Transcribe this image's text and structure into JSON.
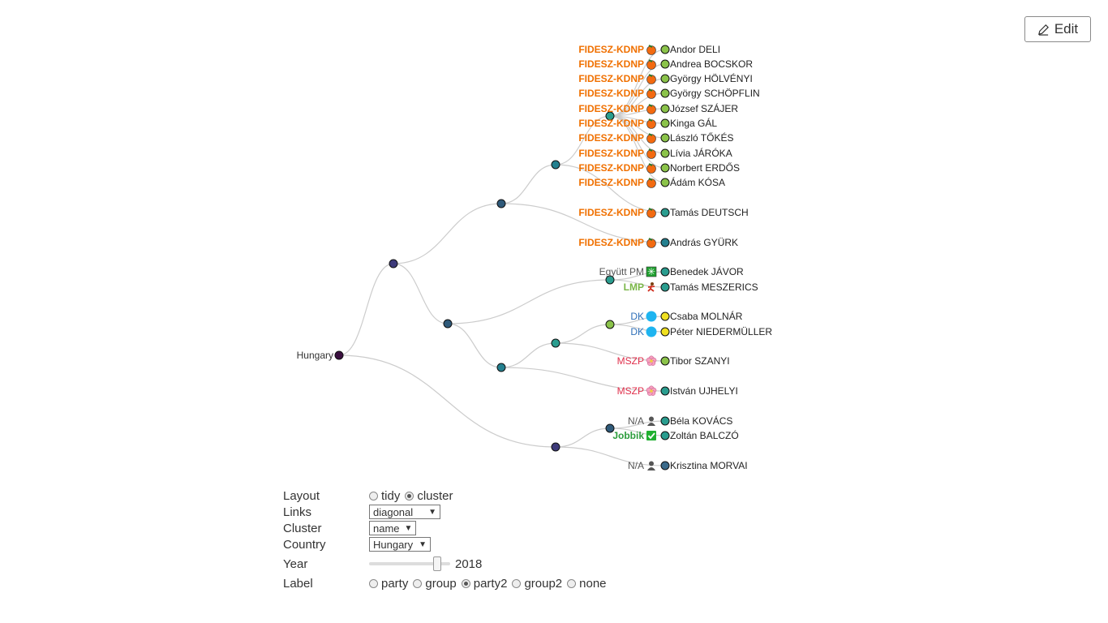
{
  "edit_button": {
    "label": "Edit"
  },
  "tree": {
    "root_label": "Hungary",
    "colors": {
      "fidesz": "#f07000",
      "jobbik": "#2c9c3c",
      "lmp": "#7ab648",
      "dk": "#2f6fb8",
      "mszp": "#e0304c",
      "na": "#555555",
      "egyutt": "#555555"
    },
    "leaves": [
      {
        "party": "FIDESZ-KDNP",
        "party_color": "#f07000",
        "party_icon": "orange-icon",
        "dot_color": "#8bc34a",
        "name": "Andor DELI"
      },
      {
        "party": "FIDESZ-KDNP",
        "party_color": "#f07000",
        "party_icon": "orange-icon",
        "dot_color": "#8bc34a",
        "name": "Andrea BOCSKOR"
      },
      {
        "party": "FIDESZ-KDNP",
        "party_color": "#f07000",
        "party_icon": "orange-icon",
        "dot_color": "#8bc34a",
        "name": "György HÖLVÉNYI"
      },
      {
        "party": "FIDESZ-KDNP",
        "party_color": "#f07000",
        "party_icon": "orange-icon",
        "dot_color": "#8bc34a",
        "name": "György SCHÖPFLIN"
      },
      {
        "party": "FIDESZ-KDNP",
        "party_color": "#f07000",
        "party_icon": "orange-icon",
        "dot_color": "#8bc34a",
        "name": "József SZÁJER"
      },
      {
        "party": "FIDESZ-KDNP",
        "party_color": "#f07000",
        "party_icon": "orange-icon",
        "dot_color": "#8bc34a",
        "name": "Kinga GÁL"
      },
      {
        "party": "FIDESZ-KDNP",
        "party_color": "#f07000",
        "party_icon": "orange-icon",
        "dot_color": "#8bc34a",
        "name": "László TŐKÉS"
      },
      {
        "party": "FIDESZ-KDNP",
        "party_color": "#f07000",
        "party_icon": "orange-icon",
        "dot_color": "#8bc34a",
        "name": "Lívia JÁRÓKA"
      },
      {
        "party": "FIDESZ-KDNP",
        "party_color": "#f07000",
        "party_icon": "orange-icon",
        "dot_color": "#8bc34a",
        "name": "Norbert ERDŐS"
      },
      {
        "party": "FIDESZ-KDNP",
        "party_color": "#f07000",
        "party_icon": "orange-icon",
        "dot_color": "#8bc34a",
        "name": "Ádám KÓSA"
      },
      {
        "party": "FIDESZ-KDNP",
        "party_color": "#f07000",
        "party_icon": "orange-icon",
        "dot_color": "#2a9d8f",
        "name": "Tamás DEUTSCH"
      },
      {
        "party": "FIDESZ-KDNP",
        "party_color": "#f07000",
        "party_icon": "orange-icon",
        "dot_color": "#24808f",
        "name": "András GYÜRK"
      },
      {
        "party": "Együtt PM",
        "party_color": "#555555",
        "party_icon": "green-square-icon",
        "dot_color": "#2a9d8f",
        "name": "Benedek JÁVOR"
      },
      {
        "party": "LMP",
        "party_color": "#7ab648",
        "party_icon": "runner-icon",
        "dot_color": "#2a9d8f",
        "name": "Tamás MESZERICS"
      },
      {
        "party": "DK",
        "party_color": "#2f6fb8",
        "party_icon": "blue-circle-icon",
        "dot_color": "#f0e020",
        "name": "Csaba MOLNÁR"
      },
      {
        "party": "DK",
        "party_color": "#2f6fb8",
        "party_icon": "blue-circle-icon",
        "dot_color": "#f0e020",
        "name": "Péter NIEDERMÜLLER"
      },
      {
        "party": "MSZP",
        "party_color": "#e0304c",
        "party_icon": "flower-icon",
        "dot_color": "#8bc34a",
        "name": "Tibor SZANYI"
      },
      {
        "party": "MSZP",
        "party_color": "#e0304c",
        "party_icon": "flower-icon",
        "dot_color": "#2a9d8f",
        "name": "István UJHELYI"
      },
      {
        "party": "N/A",
        "party_color": "#555555",
        "party_icon": "person-icon",
        "dot_color": "#2a9d8f",
        "name": "Béla KOVÁCS"
      },
      {
        "party": "Jobbik",
        "party_color": "#2c9c3c",
        "party_icon": "check-icon",
        "dot_color": "#2a9d8f",
        "name": "Zoltán BALCZÓ"
      },
      {
        "party": "N/A",
        "party_color": "#555555",
        "party_icon": "person-icon",
        "dot_color": "#3a6a8a",
        "name": "Krisztina MORVAI"
      }
    ]
  },
  "controls": {
    "layout": {
      "label": "Layout",
      "options": [
        "tidy",
        "cluster"
      ],
      "selected": "cluster"
    },
    "links": {
      "label": "Links",
      "value": "diagonal"
    },
    "cluster": {
      "label": "Cluster",
      "value": "name"
    },
    "country": {
      "label": "Country",
      "value": "Hungary"
    },
    "year": {
      "label": "Year",
      "value": "2018",
      "position_fraction": 0.88
    },
    "label": {
      "label": "Label",
      "options": [
        "party",
        "group",
        "party2",
        "group2",
        "none"
      ],
      "selected": "party2"
    }
  }
}
